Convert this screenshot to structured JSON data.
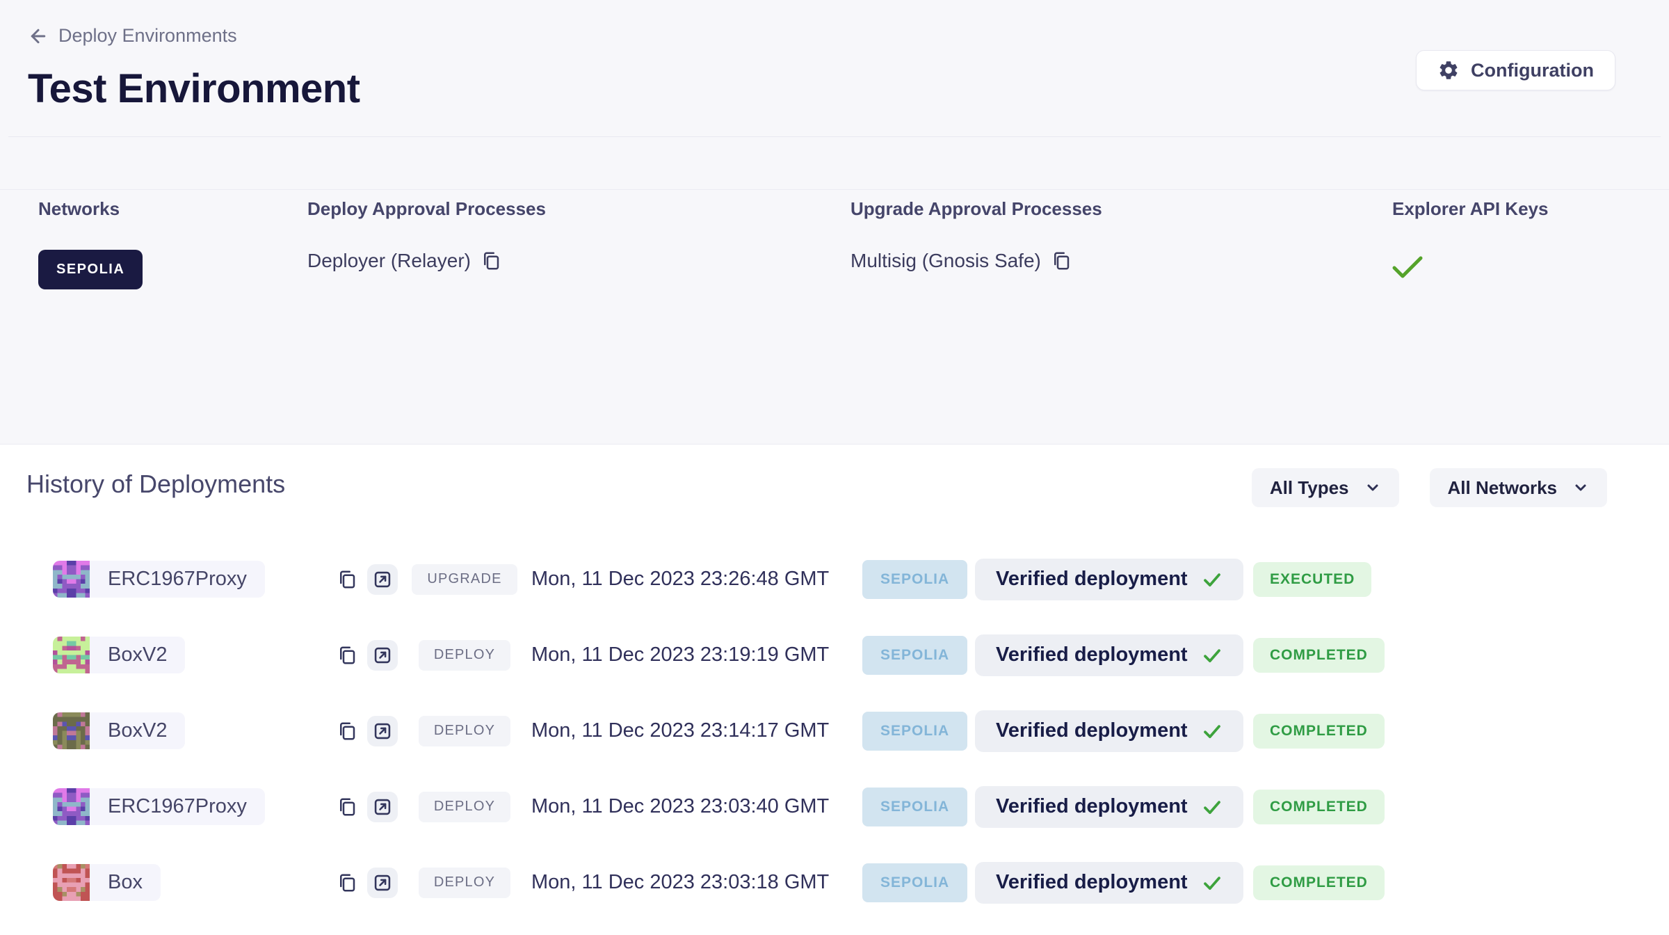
{
  "header": {
    "breadcrumb": "Deploy Environments",
    "title": "Test Environment",
    "configuration_label": "Configuration"
  },
  "details": {
    "columns": {
      "networks": "Networks",
      "deploy": "Deploy Approval Processes",
      "upgrade": "Upgrade Approval Processes",
      "explorer": "Explorer API Keys"
    },
    "network_badge": "SEPOLIA",
    "deploy_process": "Deployer (Relayer)",
    "upgrade_process": "Multisig (Gnosis Safe)",
    "explorer_status": "configured-checkmark"
  },
  "history": {
    "title": "History of Deployments",
    "filters": {
      "type": "All Types",
      "network": "All Networks"
    },
    "rows": [
      {
        "name": "ERC1967Proxy",
        "type": "UPGRADE",
        "date": "Mon, 11 Dec 2023 23:26:48 GMT",
        "network": "SEPOLIA",
        "verification": "Verified deployment",
        "status": "EXECUTED",
        "avatar": {
          "seed": 1967,
          "colors": [
            "#8f5bc4",
            "#8fb7c9",
            "#e07ae8",
            "#5b3fa8"
          ]
        }
      },
      {
        "name": "BoxV2",
        "type": "DEPLOY",
        "date": "Mon, 11 Dec 2023 23:19:19 GMT",
        "network": "SEPOLIA",
        "verification": "Verified deployment",
        "status": "COMPLETED",
        "avatar": {
          "seed": 219,
          "colors": [
            "#c7f09a",
            "#c06590",
            "#74c9a4",
            "#b3529a"
          ]
        }
      },
      {
        "name": "BoxV2",
        "type": "DEPLOY",
        "date": "Mon, 11 Dec 2023 23:14:17 GMT",
        "network": "SEPOLIA",
        "verification": "Verified deployment",
        "status": "COMPLETED",
        "avatar": {
          "seed": 214,
          "colors": [
            "#6b6b4a",
            "#c07898",
            "#5b55b0",
            "#8a8a5a"
          ]
        }
      },
      {
        "name": "ERC1967Proxy",
        "type": "DEPLOY",
        "date": "Mon, 11 Dec 2023 23:03:40 GMT",
        "network": "SEPOLIA",
        "verification": "Verified deployment",
        "status": "COMPLETED",
        "avatar": {
          "seed": 1967,
          "colors": [
            "#8f5bc4",
            "#8fb7c9",
            "#e07ae8",
            "#5b3fa8"
          ]
        }
      },
      {
        "name": "Box",
        "type": "DEPLOY",
        "date": "Mon, 11 Dec 2023 23:03:18 GMT",
        "network": "SEPOLIA",
        "verification": "Verified deployment",
        "status": "COMPLETED",
        "avatar": {
          "seed": 303,
          "colors": [
            "#c05454",
            "#e8a0b4",
            "#a89064",
            "#d47878"
          ]
        }
      }
    ]
  },
  "colors": {
    "page_background": "#f7f7fa",
    "section_background": "#ffffff",
    "network_badge_dark": "#1a1a42",
    "network_badge_light_bg": "#d2e4f0",
    "network_badge_light_text": "#83b5d8",
    "status_green_bg": "#e3f6e3",
    "status_green_text": "#2f9c44",
    "checkmark_green": "#55a32a",
    "title_text": "#17173a"
  }
}
